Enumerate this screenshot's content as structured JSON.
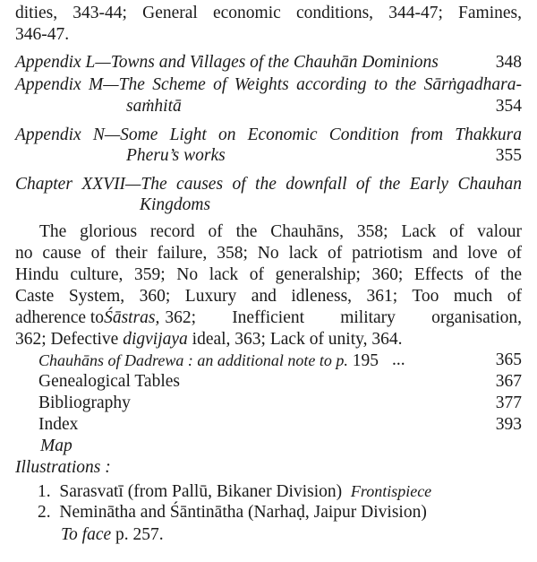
{
  "page": {
    "line1": "dities, 343-44; General economic conditions, 344-47;  Famines,",
    "line2": "346-47.",
    "appendix_l": {
      "title": "Appendix L—Towns and Villages of the Chauhān Dominions",
      "page": "348"
    },
    "appendix_m": {
      "title1": "Appendix M—The Scheme of Weights according to  the Sārṅgadhara-",
      "title2": "saṁhitā",
      "page": "354"
    },
    "appendix_n": {
      "title1": "Appendix N—Some Light on Economic Condition from Thakkura",
      "title2": "Pheru’s works",
      "page": "355"
    },
    "chapter_xxvii": {
      "title1": "Chapter XXVII—The causes of the  downfall of  the  Early Chauhan",
      "title2": "Kingdoms"
    },
    "para": {
      "l1": "The glorious record of the Chauhāns, 358; Lack of valour",
      "l2": "no cause of their failure, 358; No lack of patriotism and love of",
      "l3": "Hindu culture, 359; No lack of generalship; 360;  Effects of the",
      "l4": "Caste System, 360; Luxury  and  idleness, 361;  Too much of",
      "l5a": "adherence to",
      "l5b": "Śāstras,",
      "l5c": "362;  Inefficient  military  organisation,",
      "l6a": "362; Defective",
      "l6b": "digvijaya",
      "l6c": "ideal, 363; Lack of unity, 364."
    },
    "dadrewa": {
      "title_italic": "Chauhāns of Dadrewa : an additional note to p.",
      "title_num": "195",
      "dots": "...",
      "page": "365"
    },
    "genealogical": {
      "title": "Genealogical Tables",
      "page": "367"
    },
    "bibliography": {
      "title": "Bibliography",
      "page": "377"
    },
    "index": {
      "title": "Index",
      "page": "393"
    },
    "map": "Map",
    "illustrations": "Illustrations :",
    "illus1": {
      "num": "1.",
      "text": "Sarasvatī (from Pallū, Bikaner Division)",
      "note": "Frontispiece"
    },
    "illus2": {
      "num": "2.",
      "text": "Neminātha and Śāntinātha (Narhaḍ,  Jaipur  Division)",
      "note_italic": "To face",
      "note": "p. 257."
    }
  }
}
